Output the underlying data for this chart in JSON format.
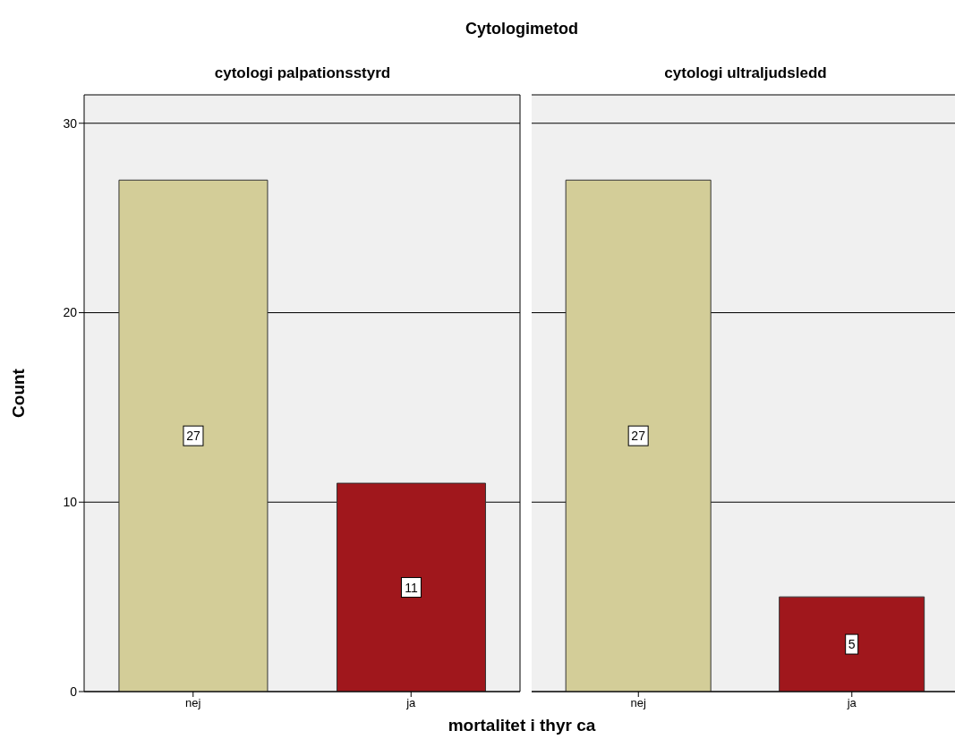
{
  "chart_data": [
    {
      "type": "bar",
      "title": "cytologi palpationsstyrd",
      "annotations": [
        "Cytologimetod"
      ],
      "xlabel": "mortalitet i thyr ca",
      "ylabel": "Count",
      "categories": [
        "nej",
        "ja"
      ],
      "values": [
        27,
        11
      ],
      "colors": [
        "#d3cd98",
        "#a0171c"
      ],
      "ylim": [
        0,
        31.5
      ],
      "yticks": [
        0,
        10,
        20,
        30
      ],
      "grid": "y",
      "data_labels": true
    },
    {
      "type": "bar",
      "title": "cytologi ultraljudsledd",
      "categories": [
        "nej",
        "ja"
      ],
      "values": [
        27,
        5
      ],
      "colors": [
        "#d3cd98",
        "#a0171c"
      ],
      "ylim": [
        0,
        31.5
      ],
      "yticks": [
        0,
        10,
        20,
        30
      ],
      "grid": "y",
      "data_labels": true,
      "tick_labels": "x"
    }
  ]
}
